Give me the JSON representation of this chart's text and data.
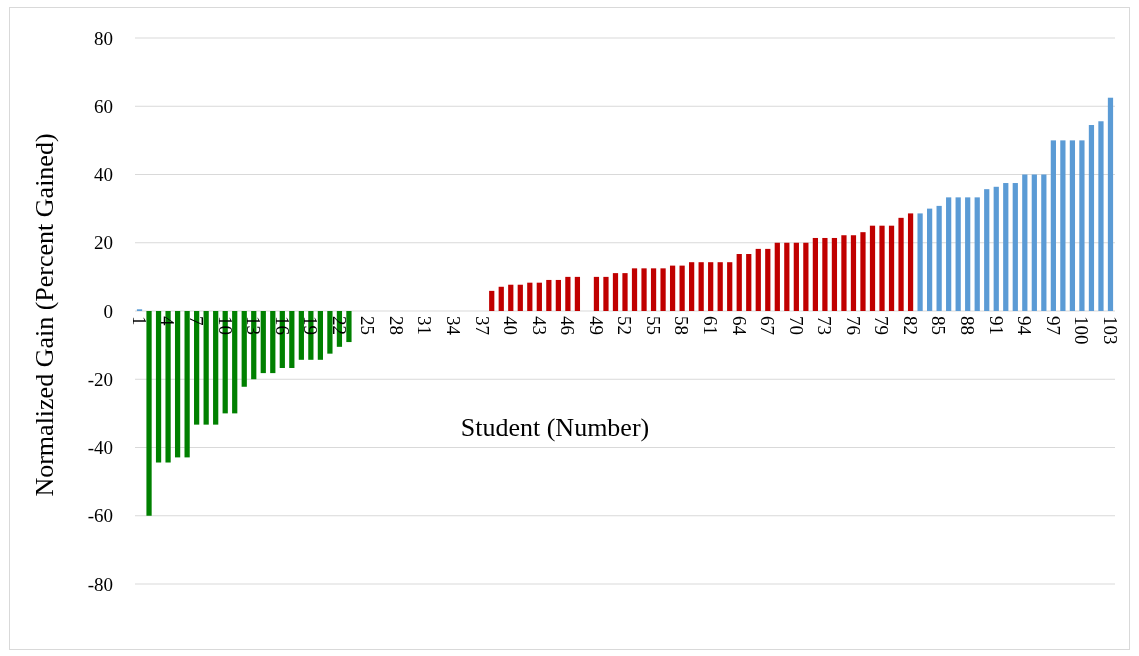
{
  "chart_data": {
    "type": "bar",
    "xlabel": "Student (Number)",
    "ylabel": "Normalized Gain (Percent Gained)",
    "categories": [
      "1",
      null,
      null,
      "4",
      null,
      null,
      "7",
      null,
      null,
      "10",
      null,
      null,
      "13",
      null,
      null,
      "16",
      null,
      null,
      "19",
      null,
      null,
      "22",
      null,
      null,
      "25",
      null,
      null,
      "28",
      null,
      null,
      "31",
      null,
      null,
      "34",
      null,
      null,
      "37",
      null,
      null,
      "40",
      null,
      null,
      "43",
      null,
      null,
      "46",
      null,
      null,
      "49",
      null,
      null,
      "52",
      null,
      null,
      "55",
      null,
      null,
      "58",
      null,
      null,
      "61",
      null,
      null,
      "64",
      null,
      null,
      "67",
      null,
      null,
      "70",
      null,
      null,
      "73",
      null,
      null,
      "76",
      null,
      null,
      "79",
      null,
      null,
      "82",
      null,
      null,
      "85",
      null,
      null,
      "88",
      null,
      null,
      "91",
      null,
      null,
      "94",
      null,
      null,
      "97",
      null,
      null,
      "100",
      null,
      null,
      "103"
    ],
    "values": [
      0.5,
      -60,
      -44.4,
      -44.4,
      -42.9,
      -42.9,
      -33.3,
      -33.3,
      -33.3,
      -30,
      -30,
      -22.2,
      -20,
      -18.2,
      -18.2,
      -16.7,
      -16.7,
      -14.3,
      -14.3,
      -14.3,
      -12.5,
      -10.5,
      -9.1,
      0,
      0,
      0,
      0,
      0,
      0,
      0,
      0,
      0,
      0,
      0,
      0,
      0,
      0,
      5.9,
      7.1,
      7.7,
      7.7,
      8.3,
      8.3,
      9.1,
      9.1,
      10,
      10,
      0,
      10,
      10,
      11.1,
      11.1,
      12.5,
      12.5,
      12.5,
      12.5,
      13.3,
      13.3,
      14.3,
      14.3,
      14.3,
      14.3,
      14.3,
      16.7,
      16.7,
      18.2,
      18.2,
      20,
      20,
      20,
      20,
      21.4,
      21.4,
      21.4,
      22.2,
      22.2,
      23.1,
      25,
      25,
      25,
      27.3,
      28.6,
      28.6,
      30,
      30.8,
      33.3,
      33.3,
      33.3,
      33.3,
      35.7,
      36.4,
      37.5,
      37.5,
      40,
      40,
      40,
      50,
      50,
      50,
      50,
      54.5,
      55.6,
      62.5
    ],
    "colors": [
      "#5b9bd5",
      "#008000",
      "#008000",
      "#008000",
      "#008000",
      "#008000",
      "#008000",
      "#008000",
      "#008000",
      "#008000",
      "#008000",
      "#008000",
      "#008000",
      "#008000",
      "#008000",
      "#008000",
      "#008000",
      "#008000",
      "#008000",
      "#008000",
      "#008000",
      "#008000",
      "#008000",
      "#008000",
      "#008000",
      "#008000",
      "#008000",
      "#008000",
      "#008000",
      "#008000",
      "#008000",
      "#008000",
      "#008000",
      "#008000",
      "#008000",
      "#008000",
      "#c00000",
      "#c00000",
      "#c00000",
      "#c00000",
      "#c00000",
      "#c00000",
      "#c00000",
      "#c00000",
      "#c00000",
      "#c00000",
      "#c00000",
      "#c00000",
      "#c00000",
      "#c00000",
      "#c00000",
      "#c00000",
      "#c00000",
      "#c00000",
      "#c00000",
      "#c00000",
      "#c00000",
      "#c00000",
      "#c00000",
      "#c00000",
      "#c00000",
      "#c00000",
      "#c00000",
      "#c00000",
      "#c00000",
      "#c00000",
      "#c00000",
      "#c00000",
      "#c00000",
      "#c00000",
      "#c00000",
      "#c00000",
      "#c00000",
      "#c00000",
      "#c00000",
      "#c00000",
      "#c00000",
      "#c00000",
      "#c00000",
      "#c00000",
      "#c00000",
      "#c00000",
      "#5b9bd5",
      "#5b9bd5",
      "#5b9bd5",
      "#5b9bd5",
      "#5b9bd5",
      "#5b9bd5",
      "#5b9bd5",
      "#5b9bd5",
      "#5b9bd5",
      "#5b9bd5",
      "#5b9bd5",
      "#5b9bd5",
      "#5b9bd5",
      "#5b9bd5",
      "#5b9bd5",
      "#5b9bd5",
      "#5b9bd5",
      "#5b9bd5",
      "#5b9bd5",
      "#5b9bd5",
      "#5b9bd5"
    ],
    "ylim": [
      -80,
      80
    ],
    "yticks": [
      -80,
      -60,
      -40,
      -20,
      0,
      20,
      40,
      60,
      80
    ],
    "grid": "y"
  }
}
